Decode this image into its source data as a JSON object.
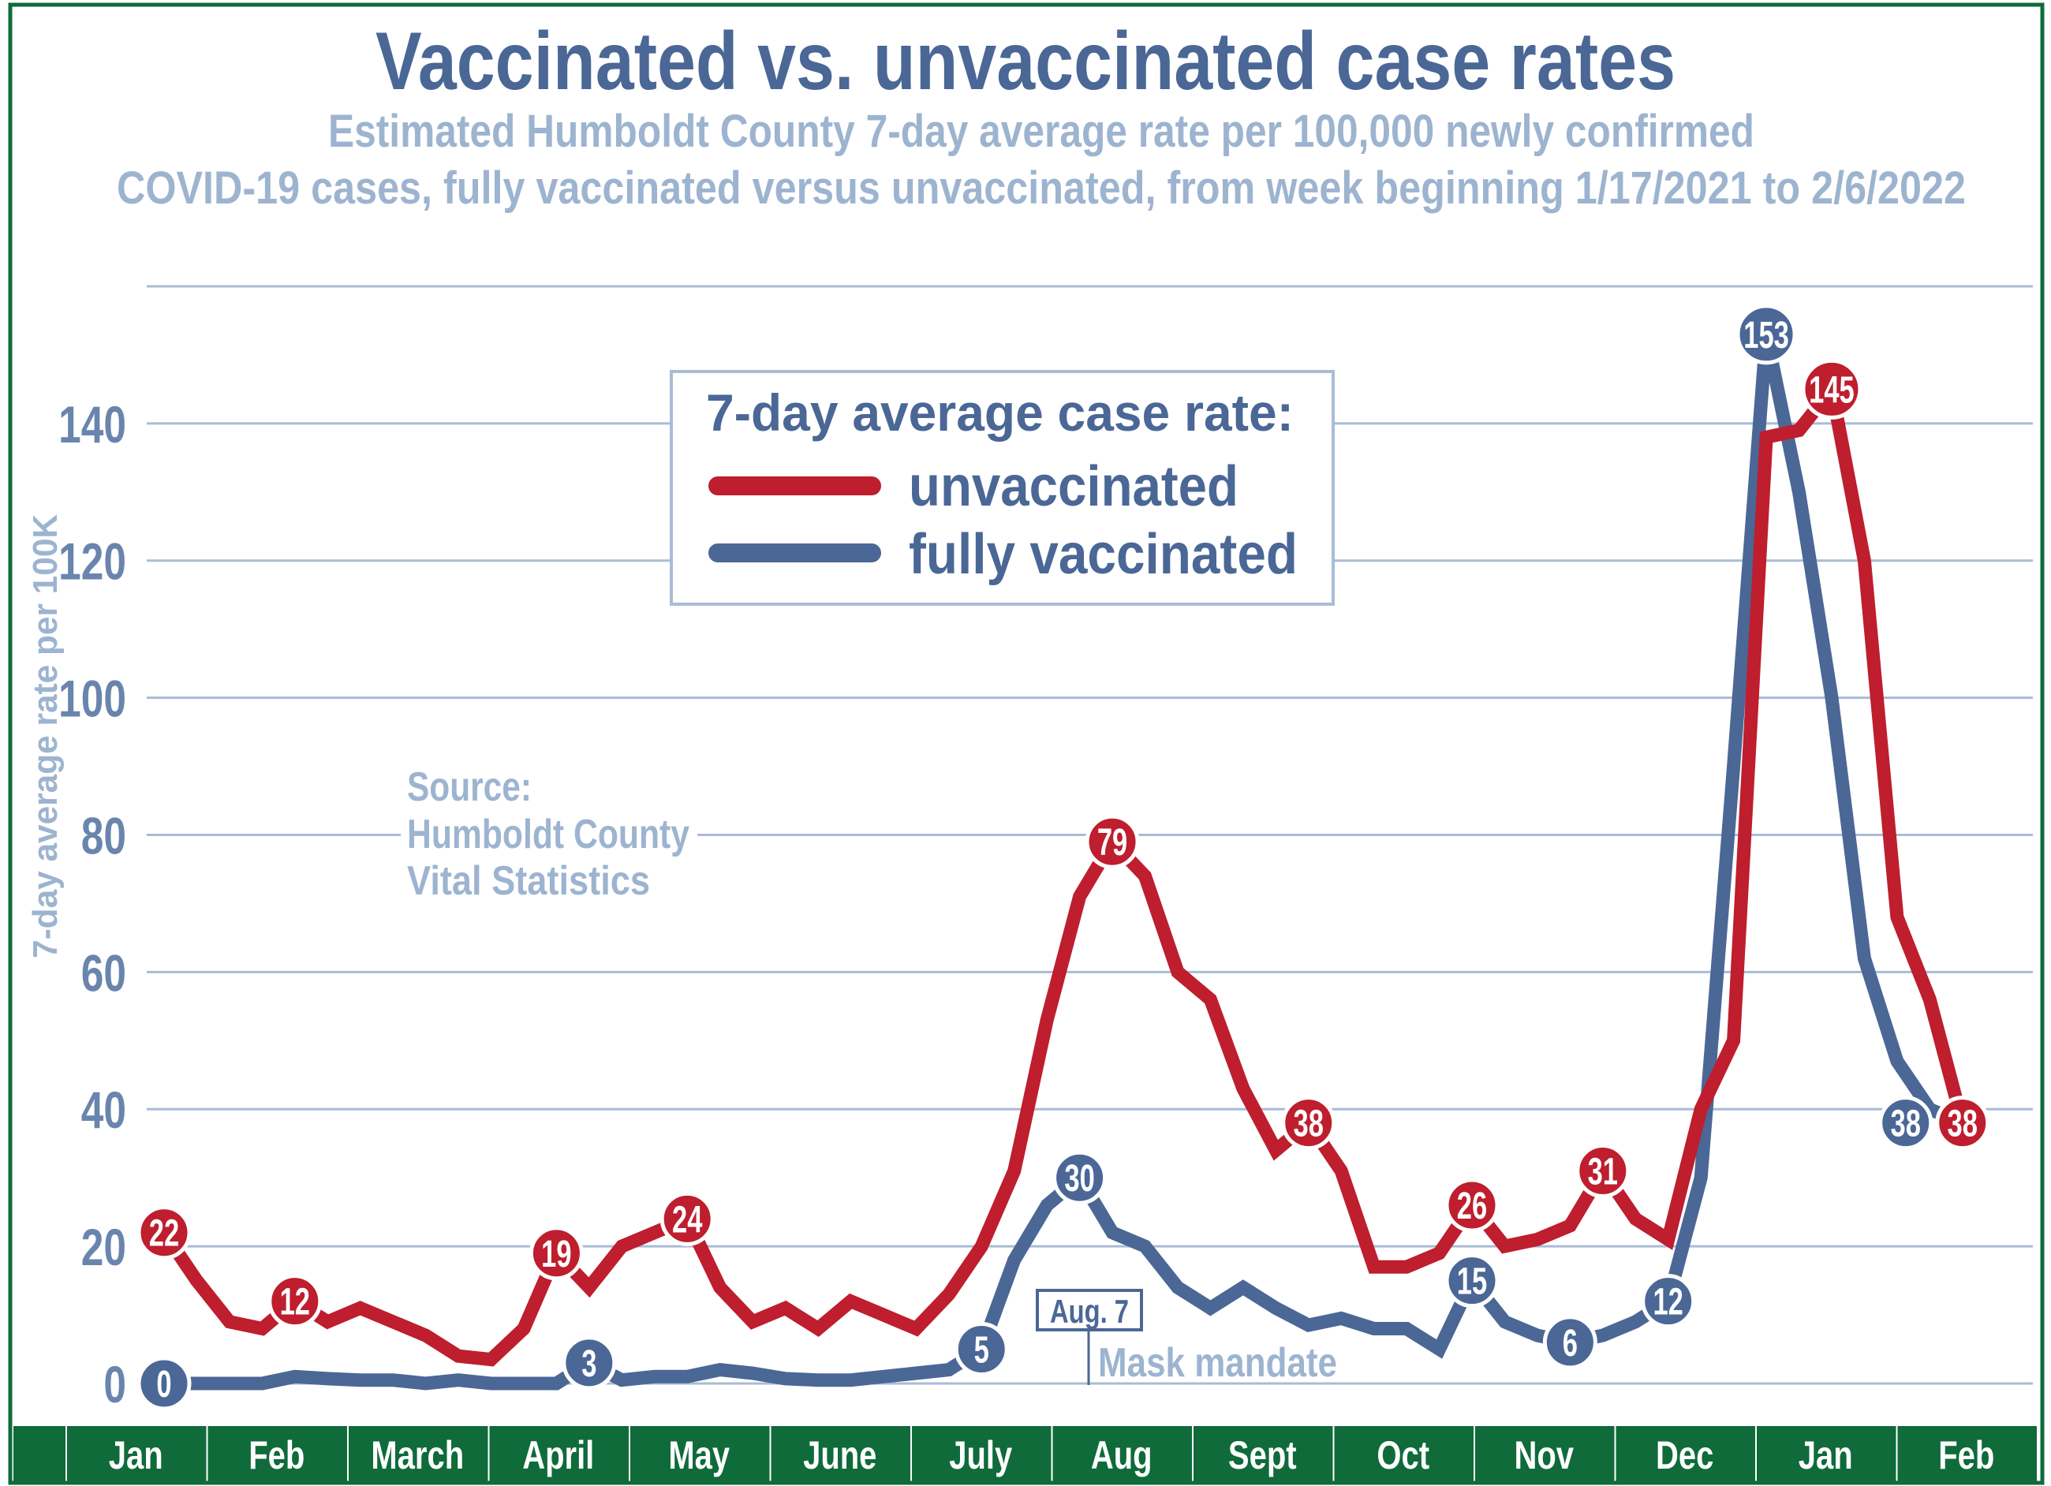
{
  "chart_data": {
    "type": "line",
    "title": "Vaccinated vs. unvaccinated case rates",
    "subtitle_lines": [
      "Estimated Humboldt County 7-day average rate per 100,000 newly confirmed",
      "COVID-19 cases,  fully vaccinated versus unvaccinated, from week beginning 1/17/2021 to 2/6/2022"
    ],
    "xlabel": "",
    "ylabel": "7-day average rate per 100K",
    "ylim": [
      0,
      160
    ],
    "yticks": [
      0,
      20,
      40,
      60,
      80,
      100,
      120,
      140
    ],
    "grid": true,
    "x_tick_labels": [
      "Jan",
      "Feb",
      "March",
      "April",
      "May",
      "June",
      "July",
      "Aug",
      "Sept",
      "Oct",
      "Nov",
      "Dec",
      "Jan",
      "Feb"
    ],
    "x": [
      "2021-01-17",
      "2021-01-24",
      "2021-01-31",
      "2021-02-07",
      "2021-02-14",
      "2021-02-21",
      "2021-02-28",
      "2021-03-07",
      "2021-03-14",
      "2021-03-21",
      "2021-03-28",
      "2021-04-04",
      "2021-04-11",
      "2021-04-18",
      "2021-04-25",
      "2021-05-02",
      "2021-05-09",
      "2021-05-16",
      "2021-05-23",
      "2021-05-30",
      "2021-06-06",
      "2021-06-13",
      "2021-06-20",
      "2021-06-27",
      "2021-07-04",
      "2021-07-11",
      "2021-07-18",
      "2021-07-25",
      "2021-08-01",
      "2021-08-08",
      "2021-08-15",
      "2021-08-22",
      "2021-08-29",
      "2021-09-05",
      "2021-09-12",
      "2021-09-19",
      "2021-09-26",
      "2021-10-03",
      "2021-10-10",
      "2021-10-17",
      "2021-10-24",
      "2021-10-31",
      "2021-11-07",
      "2021-11-14",
      "2021-11-21",
      "2021-11-28",
      "2021-12-05",
      "2021-12-12",
      "2021-12-19",
      "2021-12-26",
      "2022-01-02",
      "2022-01-09",
      "2022-01-16",
      "2022-01-23",
      "2022-01-30",
      "2022-02-06"
    ],
    "legend": {
      "title": "7-day average case rate:",
      "placement": "top-center"
    },
    "series": [
      {
        "name": "unvaccinated",
        "color": "#be1e2d",
        "values": [
          22,
          15,
          9,
          8,
          12,
          9,
          11,
          9,
          7,
          4,
          3.5,
          8,
          19,
          14,
          20,
          22,
          24,
          14,
          9,
          11,
          8,
          12,
          10,
          8,
          13,
          20,
          31,
          53,
          71,
          79,
          74,
          60,
          56,
          43,
          34,
          38,
          31,
          17,
          17,
          19,
          26,
          20,
          21,
          23,
          31,
          24,
          21,
          40,
          50,
          138,
          139,
          145,
          120,
          68,
          56,
          38
        ],
        "labels": {
          "0": "22",
          "4": "12",
          "12": "19",
          "16": "24",
          "29": "79",
          "35": "38",
          "40": "26",
          "44": "31",
          "51": "145",
          "55": "38"
        }
      },
      {
        "name": "fully vaccinated",
        "color": "#4a6796",
        "values": [
          0,
          0,
          0,
          0,
          1,
          0.7,
          0.5,
          0.5,
          0,
          0.5,
          0,
          0,
          0,
          3,
          0.5,
          1,
          1,
          2,
          1.5,
          0.7,
          0.5,
          0.5,
          1,
          1.5,
          2,
          5,
          18,
          26,
          30,
          22,
          20,
          14,
          11,
          14,
          11,
          8.5,
          9.5,
          8,
          8,
          5,
          15,
          9,
          7,
          6,
          7,
          9,
          12,
          30,
          90,
          153,
          130,
          100,
          62,
          47,
          40,
          38
        ],
        "labels": {
          "0": "0",
          "13": "3",
          "25": "5",
          "28": "30",
          "40": "15",
          "43": "6",
          "46": "12",
          "49": "153",
          "55": "38"
        }
      }
    ],
    "annotations": {
      "source": [
        "Source:",
        "Humboldt County",
        "Vital Statistics"
      ],
      "mask_date": "Aug. 7",
      "mask_text": "Mask mandate"
    }
  },
  "colors": {
    "frame": "#0f6b3a",
    "title": "#4a6796",
    "subtitle": "#9db4d0",
    "grid": "#a9bcd6",
    "tick": "#6a85ad"
  }
}
